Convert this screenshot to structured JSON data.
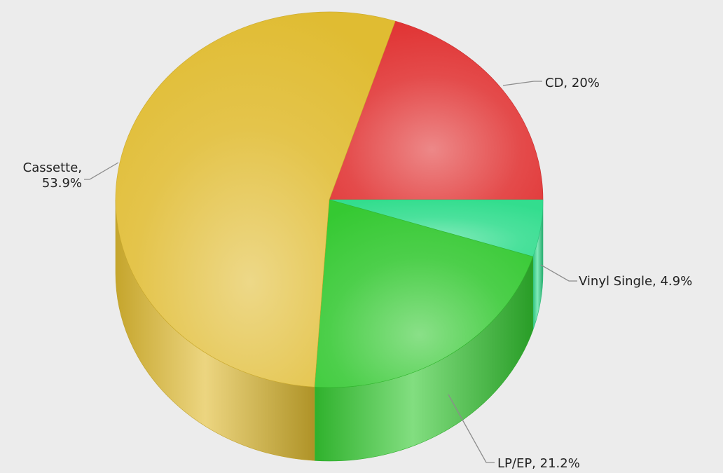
{
  "chart_data": {
    "type": "pie",
    "style": "3d-cylinder",
    "title": "",
    "slices": [
      {
        "name": "CD",
        "value": 20.0,
        "label": "CD, 20%",
        "color": "#e03232"
      },
      {
        "name": "Vinyl Single",
        "value": 4.9,
        "label": "Vinyl Single, 4.9%",
        "color": "#33dd8e"
      },
      {
        "name": "LP/EP",
        "value": 21.2,
        "label": "LP/EP, 21.2%",
        "color": "#35c932"
      },
      {
        "name": "Cassette",
        "value": 53.9,
        "label_lines": [
          "Cassette,",
          "53.9%"
        ],
        "color": "#e0bc32"
      }
    ],
    "legend": "none",
    "labels": "outside with leader lines"
  }
}
